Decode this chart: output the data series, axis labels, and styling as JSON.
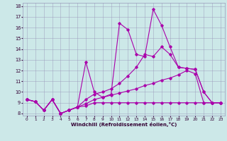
{
  "xlabel": "Windchill (Refroidissement éolien,°C)",
  "background_color": "#cce8e8",
  "line_color": "#aa00aa",
  "xlim": [
    -0.5,
    23.5
  ],
  "ylim": [
    7.8,
    18.3
  ],
  "xticks": [
    0,
    1,
    2,
    3,
    4,
    5,
    6,
    7,
    8,
    9,
    10,
    11,
    12,
    13,
    14,
    15,
    16,
    17,
    18,
    19,
    20,
    21,
    22,
    23
  ],
  "yticks": [
    8,
    9,
    10,
    11,
    12,
    13,
    14,
    15,
    16,
    17,
    18
  ],
  "lines": [
    {
      "x": [
        0,
        1,
        2,
        3,
        4,
        5,
        6,
        7,
        8,
        9,
        10,
        11,
        12,
        13,
        14,
        15,
        16,
        17,
        18,
        19,
        20,
        21,
        22,
        23
      ],
      "y": [
        9.3,
        9.1,
        8.3,
        9.3,
        8.0,
        8.3,
        8.6,
        8.7,
        9.0,
        9.0,
        9.0,
        9.0,
        9.0,
        9.0,
        9.0,
        9.0,
        9.0,
        9.0,
        9.0,
        9.0,
        9.0,
        9.0,
        9.0,
        9.0
      ]
    },
    {
      "x": [
        0,
        1,
        2,
        3,
        4,
        5,
        6,
        7,
        8,
        9,
        10,
        11,
        12,
        13,
        14,
        15,
        16,
        17,
        18,
        19,
        20,
        21,
        22,
        23
      ],
      "y": [
        9.3,
        9.1,
        8.3,
        9.3,
        8.0,
        8.3,
        8.6,
        8.9,
        9.3,
        9.5,
        9.7,
        9.9,
        10.1,
        10.3,
        10.6,
        10.8,
        11.1,
        11.3,
        11.6,
        12.0,
        11.7,
        9.0,
        9.0,
        9.0
      ]
    },
    {
      "x": [
        0,
        1,
        2,
        3,
        4,
        5,
        6,
        7,
        8,
        9,
        10,
        11,
        12,
        13,
        14,
        15,
        16,
        17,
        18,
        19,
        20,
        21,
        22,
        23
      ],
      "y": [
        9.3,
        9.1,
        8.3,
        9.3,
        8.0,
        8.3,
        8.6,
        9.3,
        9.8,
        10.0,
        10.3,
        10.8,
        11.5,
        12.3,
        13.5,
        13.3,
        14.2,
        13.5,
        12.3,
        12.2,
        12.1,
        10.0,
        9.0,
        9.0
      ]
    },
    {
      "x": [
        0,
        1,
        2,
        3,
        4,
        5,
        6,
        7,
        8,
        9,
        10,
        11,
        12,
        13,
        14,
        15,
        16,
        17,
        18,
        19,
        20,
        21,
        22,
        23
      ],
      "y": [
        9.3,
        9.1,
        8.3,
        9.3,
        8.0,
        8.3,
        8.6,
        12.8,
        10.0,
        9.5,
        9.8,
        16.4,
        15.8,
        13.5,
        13.3,
        17.7,
        16.2,
        14.2,
        12.3,
        12.2,
        12.1,
        10.0,
        9.0,
        9.0
      ]
    }
  ]
}
